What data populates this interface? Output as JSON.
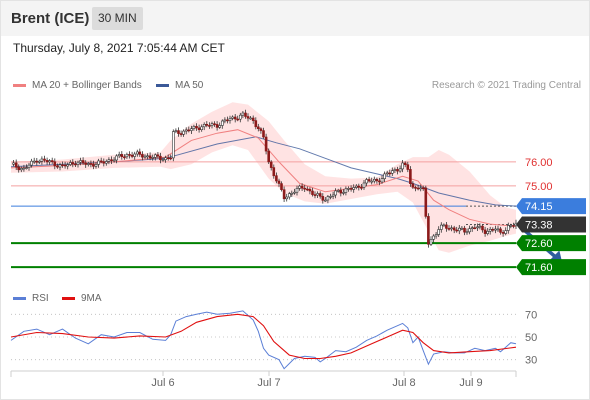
{
  "header": {
    "title": "Brent (ICE)",
    "timeframe": "30 MIN"
  },
  "date_text": "Thursday, July 8, 2021 7:05:44 AM CET",
  "legend": {
    "ma20_label": "MA 20 + Bollinger Bands",
    "ma50_label": "MA 50",
    "credit": "Research © 2021 Trading Central",
    "rsi_label": "RSI",
    "rsi_ma_label": "9MA"
  },
  "colors": {
    "ma20": "#f08080",
    "ma50": "#3b5998",
    "bollinger": "#ffd9d9",
    "support": "#008000",
    "pivot": "#3b7ddd",
    "resistance": "#f4a0a0",
    "current": "#333333",
    "rsi": "#5b7fd6",
    "rsi_ma": "#e01010",
    "candle_up": "#ffffff",
    "candle_down": "#8b1a1a"
  },
  "chart_data": [
    {
      "type": "candlestick",
      "instrument": "Brent (ICE)",
      "interval": "30 MIN",
      "x_ticks": [
        "Jul 6",
        "Jul 7",
        "Jul 8",
        "Jul 9"
      ],
      "ylim": [
        70.85,
        78.8
      ],
      "ma20_label": "MA 20 + Bollinger Bands",
      "ma50_label": "MA 50",
      "levels": [
        {
          "value": 76.0,
          "label": "76.00",
          "kind": "resistance"
        },
        {
          "value": 75.0,
          "label": "75.00",
          "kind": "resistance"
        },
        {
          "value": 74.15,
          "label": "74.15",
          "kind": "pivot"
        },
        {
          "value": 73.38,
          "label": "73.38",
          "kind": "current"
        },
        {
          "value": 72.6,
          "label": "72.60",
          "kind": "support"
        },
        {
          "value": 71.6,
          "label": "71.60",
          "kind": "support"
        }
      ],
      "close_path": [
        [
          0,
          75.9
        ],
        [
          5,
          75.7
        ],
        [
          10,
          76.1
        ],
        [
          15,
          76.0
        ],
        [
          20,
          75.8
        ],
        [
          25,
          76.0
        ],
        [
          30,
          75.9
        ],
        [
          35,
          75.95
        ],
        [
          40,
          76.15
        ],
        [
          45,
          76.3
        ],
        [
          50,
          76.3
        ],
        [
          55,
          76.2
        ],
        [
          60,
          76.15
        ],
        [
          62,
          76.2
        ],
        [
          63,
          77.2
        ],
        [
          68,
          77.3
        ],
        [
          74,
          77.5
        ],
        [
          80,
          77.55
        ],
        [
          85,
          77.8
        ],
        [
          90,
          77.95
        ],
        [
          94,
          77.75
        ],
        [
          96,
          77.4
        ],
        [
          98,
          77.0
        ],
        [
          100,
          76.0
        ],
        [
          104,
          75.0
        ],
        [
          106,
          74.5
        ],
        [
          110,
          74.8
        ],
        [
          114,
          74.95
        ],
        [
          118,
          74.6
        ],
        [
          122,
          74.45
        ],
        [
          126,
          74.7
        ],
        [
          130,
          74.85
        ],
        [
          134,
          74.9
        ],
        [
          138,
          75.2
        ],
        [
          142,
          75.2
        ],
        [
          146,
          75.5
        ],
        [
          150,
          75.7
        ],
        [
          152,
          75.9
        ],
        [
          154,
          75.7
        ],
        [
          155,
          75.1
        ],
        [
          156,
          74.9
        ],
        [
          158,
          75.0
        ],
        [
          160,
          74.8
        ],
        [
          162,
          72.6
        ],
        [
          164,
          72.9
        ],
        [
          166,
          73.2
        ],
        [
          168,
          73.3
        ],
        [
          172,
          73.2
        ],
        [
          176,
          73.1
        ],
        [
          180,
          73.3
        ],
        [
          184,
          73.1
        ],
        [
          188,
          73.2
        ],
        [
          190,
          73.0
        ],
        [
          193,
          73.3
        ],
        [
          196,
          73.38
        ]
      ],
      "ma20": [
        [
          0,
          75.75
        ],
        [
          20,
          75.85
        ],
        [
          40,
          76.0
        ],
        [
          60,
          76.2
        ],
        [
          70,
          76.9
        ],
        [
          80,
          77.2
        ],
        [
          88,
          77.35
        ],
        [
          96,
          77.0
        ],
        [
          104,
          76.0
        ],
        [
          112,
          75.1
        ],
        [
          122,
          74.75
        ],
        [
          132,
          74.9
        ],
        [
          142,
          75.05
        ],
        [
          152,
          75.4
        ],
        [
          158,
          75.2
        ],
        [
          164,
          74.4
        ],
        [
          170,
          74.0
        ],
        [
          178,
          73.6
        ],
        [
          186,
          73.4
        ],
        [
          196,
          73.3
        ]
      ],
      "ma50": [
        [
          0,
          75.8
        ],
        [
          20,
          75.9
        ],
        [
          40,
          76.0
        ],
        [
          60,
          76.15
        ],
        [
          80,
          76.75
        ],
        [
          95,
          77.05
        ],
        [
          103,
          76.8
        ],
        [
          112,
          76.55
        ],
        [
          122,
          76.15
        ],
        [
          132,
          75.75
        ],
        [
          142,
          75.5
        ],
        [
          150,
          75.3
        ],
        [
          156,
          75.1
        ],
        [
          166,
          74.7
        ],
        [
          178,
          74.4
        ],
        [
          188,
          74.2
        ],
        [
          196,
          74.15
        ]
      ],
      "bollinger_upper": [
        [
          0,
          76.0
        ],
        [
          20,
          76.1
        ],
        [
          40,
          76.3
        ],
        [
          58,
          76.4
        ],
        [
          62,
          76.9
        ],
        [
          70,
          77.6
        ],
        [
          78,
          78.1
        ],
        [
          86,
          78.5
        ],
        [
          92,
          78.4
        ],
        [
          100,
          77.7
        ],
        [
          106,
          76.9
        ],
        [
          114,
          75.9
        ],
        [
          122,
          75.4
        ],
        [
          132,
          75.3
        ],
        [
          142,
          75.35
        ],
        [
          150,
          75.9
        ],
        [
          156,
          76.2
        ],
        [
          162,
          76.2
        ],
        [
          166,
          76.5
        ],
        [
          170,
          76.3
        ],
        [
          178,
          75.6
        ],
        [
          186,
          74.6
        ],
        [
          192,
          74.1
        ],
        [
          196,
          74.0
        ]
      ],
      "bollinger_lower": [
        [
          0,
          75.55
        ],
        [
          20,
          75.6
        ],
        [
          40,
          75.75
        ],
        [
          58,
          75.8
        ],
        [
          62,
          75.7
        ],
        [
          70,
          75.9
        ],
        [
          78,
          76.4
        ],
        [
          86,
          76.7
        ],
        [
          92,
          76.5
        ],
        [
          100,
          75.3
        ],
        [
          106,
          74.7
        ],
        [
          114,
          74.35
        ],
        [
          122,
          74.25
        ],
        [
          132,
          74.45
        ],
        [
          142,
          74.65
        ],
        [
          150,
          74.75
        ],
        [
          156,
          74.3
        ],
        [
          162,
          73.1
        ],
        [
          166,
          72.3
        ],
        [
          170,
          72.2
        ],
        [
          178,
          72.5
        ],
        [
          186,
          72.7
        ],
        [
          192,
          72.9
        ],
        [
          196,
          73.0
        ]
      ],
      "forecast_arrow": [
        [
          196,
          73.38
        ],
        [
          214,
          71.75
        ]
      ]
    },
    {
      "type": "line",
      "series": [
        {
          "name": "RSI"
        },
        {
          "name": "9MA"
        }
      ],
      "ylim": [
        20,
        80
      ],
      "y_ticks": [
        70,
        50,
        30
      ],
      "rsi": [
        [
          0,
          47
        ],
        [
          5,
          55
        ],
        [
          10,
          57
        ],
        [
          15,
          52
        ],
        [
          20,
          57
        ],
        [
          25,
          49
        ],
        [
          30,
          44
        ],
        [
          35,
          52
        ],
        [
          40,
          50
        ],
        [
          45,
          54
        ],
        [
          50,
          54
        ],
        [
          55,
          48
        ],
        [
          60,
          47
        ],
        [
          62,
          52
        ],
        [
          64,
          64
        ],
        [
          68,
          68
        ],
        [
          72,
          70
        ],
        [
          76,
          72
        ],
        [
          80,
          70
        ],
        [
          85,
          71
        ],
        [
          90,
          73
        ],
        [
          94,
          65
        ],
        [
          96,
          55
        ],
        [
          98,
          40
        ],
        [
          100,
          34
        ],
        [
          104,
          30
        ],
        [
          106,
          22
        ],
        [
          110,
          31
        ],
        [
          114,
          33
        ],
        [
          118,
          32
        ],
        [
          120,
          28
        ],
        [
          122,
          31
        ],
        [
          126,
          38
        ],
        [
          130,
          37
        ],
        [
          134,
          41
        ],
        [
          138,
          47
        ],
        [
          142,
          51
        ],
        [
          146,
          56
        ],
        [
          150,
          60
        ],
        [
          152,
          62
        ],
        [
          154,
          58
        ],
        [
          156,
          45
        ],
        [
          158,
          50
        ],
        [
          160,
          38
        ],
        [
          162,
          26
        ],
        [
          164,
          35
        ],
        [
          168,
          37
        ],
        [
          172,
          36
        ],
        [
          176,
          36
        ],
        [
          180,
          40
        ],
        [
          184,
          38
        ],
        [
          188,
          40
        ],
        [
          190,
          37
        ],
        [
          192,
          41
        ],
        [
          194,
          45
        ],
        [
          196,
          44
        ]
      ],
      "rsi_ma": [
        [
          0,
          50
        ],
        [
          10,
          54
        ],
        [
          20,
          53
        ],
        [
          30,
          50
        ],
        [
          40,
          49
        ],
        [
          50,
          51
        ],
        [
          60,
          50
        ],
        [
          66,
          55
        ],
        [
          72,
          63
        ],
        [
          80,
          68
        ],
        [
          88,
          70
        ],
        [
          94,
          68
        ],
        [
          98,
          60
        ],
        [
          102,
          46
        ],
        [
          108,
          34
        ],
        [
          114,
          31
        ],
        [
          120,
          31
        ],
        [
          126,
          33
        ],
        [
          132,
          36
        ],
        [
          140,
          44
        ],
        [
          146,
          50
        ],
        [
          152,
          56
        ],
        [
          156,
          54
        ],
        [
          160,
          45
        ],
        [
          164,
          38
        ],
        [
          170,
          36
        ],
        [
          178,
          37
        ],
        [
          186,
          38
        ],
        [
          196,
          41
        ]
      ]
    }
  ]
}
